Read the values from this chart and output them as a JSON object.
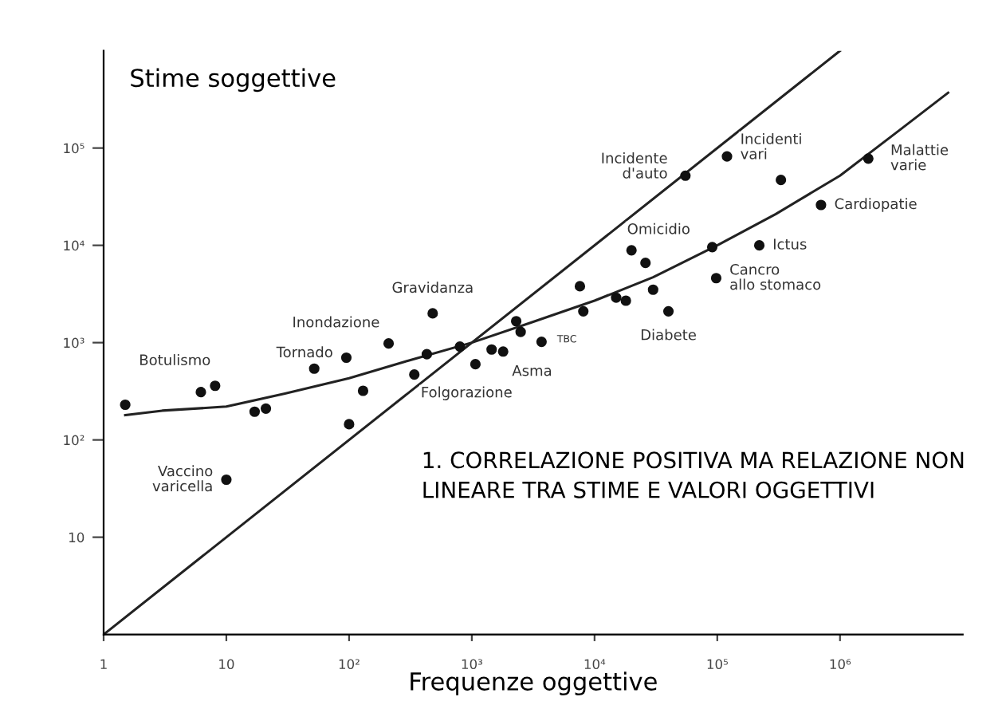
{
  "chart_data": {
    "type": "scatter",
    "xlabel": "Frequenze oggettive",
    "ylabel": "Stime soggettive",
    "log": "xy",
    "xlim": [
      1,
      10000000
    ],
    "ylim": [
      1,
      1000000
    ],
    "xticks": [
      1,
      10,
      {
        "value": 100,
        "label": "10²"
      },
      {
        "value": 1000,
        "label": "10³"
      },
      {
        "value": 10000,
        "label": "10⁴"
      },
      {
        "value": 100000,
        "label": "10⁵"
      },
      {
        "value": 1000000,
        "label": "10⁶"
      }
    ],
    "yticks": [
      10,
      {
        "value": 100,
        "label": "10²"
      },
      {
        "value": 1000,
        "label": "10³"
      },
      {
        "value": 10000,
        "label": "10⁴"
      },
      {
        "value": 100000,
        "label": "10⁵"
      }
    ],
    "grid": false,
    "legend": false,
    "series": [
      {
        "type": "line",
        "marker": "none",
        "color": "#222222",
        "x": [
          1,
          1000000
        ],
        "values": [
          1,
          1000000
        ]
      },
      {
        "type": "line",
        "marker": "none",
        "color": "#222222",
        "x": [
          1.5,
          3,
          10,
          30,
          100,
          300,
          1000,
          3000,
          10000,
          30000,
          100000,
          300000,
          1000000,
          3000000,
          7600000
        ],
        "values": [
          180,
          200,
          220,
          300,
          430,
          650,
          1000,
          1600,
          2700,
          4700,
          10000,
          21000,
          52000,
          150000,
          370000
        ]
      },
      {
        "marker": "circle",
        "color": "#111111",
        "x": [
          1.5,
          6.2,
          8.1,
          17,
          21,
          52,
          95,
          130,
          100,
          10,
          210,
          430,
          340,
          480,
          800,
          1070,
          1450,
          1800,
          2300,
          2500,
          3700,
          7600,
          8100,
          15000,
          18000,
          20000,
          26000,
          30000,
          40000,
          55000,
          91000,
          98000,
          120000,
          220000,
          330000,
          700000,
          1700000
        ],
        "values": [
          230,
          310,
          360,
          195,
          210,
          540,
          700,
          320,
          145,
          39,
          980,
          760,
          470,
          2000,
          910,
          600,
          850,
          810,
          1660,
          1290,
          1020,
          3800,
          2100,
          2900,
          2700,
          8900,
          6600,
          3500,
          2100,
          52000,
          9600,
          4600,
          82000,
          10000,
          47000,
          26000,
          78000
        ]
      }
    ],
    "annotations": [
      {
        "text": "Botulismo",
        "x": 8.1,
        "y": 360
      },
      {
        "text": "Vaccino\nvaricella",
        "x": 10,
        "y": 39
      },
      {
        "text": "Tornado",
        "x": 95,
        "y": 700
      },
      {
        "text": "Inondazione",
        "x": 210,
        "y": 980
      },
      {
        "text": "Gravidanza",
        "x": 480,
        "y": 2000
      },
      {
        "text": "Folgorazione",
        "x": 1070,
        "y": 600
      },
      {
        "text": "Asma",
        "x": 1800,
        "y": 810
      },
      {
        "text": "TBC",
        "x": 3700,
        "y": 1020
      },
      {
        "text": "Omicidio",
        "x": 20000,
        "y": 8900
      },
      {
        "text": "Diabete",
        "x": 40000,
        "y": 2100
      },
      {
        "text": "Incidente\nd'auto",
        "x": 55000,
        "y": 52000
      },
      {
        "text": "Incidenti\nvari",
        "x": 120000,
        "y": 82000
      },
      {
        "text": "Cardiopatie",
        "x": 700000,
        "y": 26000
      },
      {
        "text": "Ictus",
        "x": 220000,
        "y": 10000
      },
      {
        "text": "Cancro\nallo stomaco",
        "x": 98000,
        "y": 4600
      },
      {
        "text": "Malattie\nvarie",
        "x": 1700000,
        "y": 78000
      },
      "1. CORRELAZIONE POSITIVA MA RELAZIONE NON\nLINEARE TRA STIME E VALORI OGGETTIVI"
    ]
  }
}
